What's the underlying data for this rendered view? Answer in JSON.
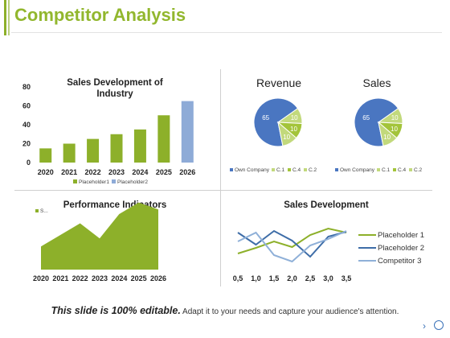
{
  "page": {
    "title": "Competitor Analysis",
    "footer_bold": "This slide is 100% editable.",
    "footer_text": "Adapt it to your needs and capture your audience's attention.",
    "nav_next_icon": "›"
  },
  "colors": {
    "accent_green": "#8db02a",
    "title_green": "#92b72e",
    "pie_blue": "#4a76c1",
    "pie_green": "#a3c43a",
    "pie_light_green": "#c2d97c",
    "line_blue_dark": "#3e6da8",
    "line_blue_light": "#8fb0d8",
    "bar_light_blue": "#8eabd7"
  },
  "chart_data": [
    {
      "id": "sales_development_industry",
      "type": "bar",
      "title": "Sales Development of Industry",
      "categories": [
        "2020",
        "2021",
        "2022",
        "2023",
        "2024",
        "2025",
        "2026"
      ],
      "series": [
        {
          "name": "Placeholder1",
          "values": [
            15,
            20,
            25,
            30,
            35,
            50,
            null
          ]
        },
        {
          "name": "Placeholder2",
          "values": [
            null,
            null,
            null,
            null,
            null,
            null,
            65
          ]
        }
      ],
      "ylim": [
        0,
        80
      ],
      "yticks": [
        "0",
        "20",
        "40",
        "60",
        "80"
      ],
      "legend": "bottom"
    },
    {
      "id": "revenue",
      "type": "pie",
      "title": "Revenue",
      "labels": [
        "Own Company",
        "C.1",
        "C.4",
        "C.2"
      ],
      "values": [
        65,
        10,
        10,
        10
      ],
      "legend": "bottom"
    },
    {
      "id": "sales",
      "type": "pie",
      "title": "Sales",
      "labels": [
        "Own Company",
        "C.1",
        "C.4",
        "C.2"
      ],
      "values": [
        65,
        10,
        10,
        10
      ],
      "legend": "bottom"
    },
    {
      "id": "performance_indicators",
      "type": "area",
      "title": "Performance Indicators",
      "categories": [
        "2020",
        "2021",
        "2022",
        "2023",
        "2024",
        "2025",
        "2026"
      ],
      "series": [
        {
          "name": "S...",
          "values": [
            20,
            30,
            40,
            27,
            48,
            58,
            52
          ]
        }
      ],
      "legend": "top-left"
    },
    {
      "id": "sales_development",
      "type": "line",
      "title": "Sales Development",
      "x": [
        "0,5",
        "1,0",
        "1,5",
        "2,0",
        "2,5",
        "3,0",
        "3,5"
      ],
      "series": [
        {
          "name": "Placeholder 1",
          "values": [
            1.5,
            2.2,
            3.0,
            2.3,
            3.8,
            4.6,
            4.1
          ]
        },
        {
          "name": "Placeholder 2",
          "values": [
            4.1,
            2.6,
            4.3,
            3.1,
            1.1,
            3.6,
            4.2
          ]
        },
        {
          "name": "Competitor 3",
          "values": [
            3.0,
            4.1,
            1.3,
            0.5,
            2.5,
            3.3,
            4.3
          ]
        }
      ],
      "legend": "right"
    }
  ]
}
